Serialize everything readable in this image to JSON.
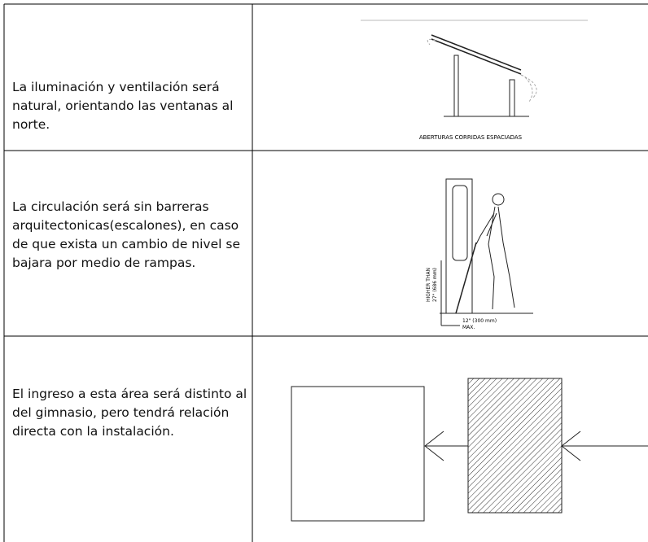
{
  "rows": [
    {
      "text": "La iluminación y ventilación será natural, orientando las ventanas al norte.",
      "diagram_label": "ABERTURAS CORRIDAS ESPACIADAS"
    },
    {
      "text": "La circulación será sin barreras arquitectonicas(escalones), en caso de que exista un cambio de nivel se bajara por medio de rampas.",
      "diagram_labels": [
        "HIGHER THAN",
        "27\" (686 mm)",
        "12\" (300 mm)",
        "MAX."
      ]
    },
    {
      "text": "El ingreso a esta área será distinto al del gimnasio, pero tendrá relación directa con la instalación."
    }
  ]
}
